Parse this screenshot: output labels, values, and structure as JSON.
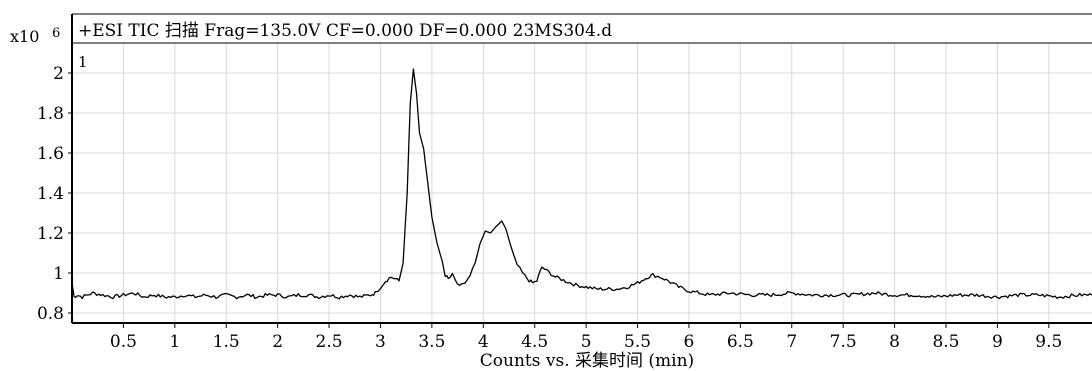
{
  "chart_data": {
    "type": "line",
    "title": "+ESI TIC 扫描 Frag=135.0V CF=0.000 DF=0.000 23MS304.d",
    "xlabel": "Counts vs. 采集时间 (min)",
    "ylabel": "",
    "y_multiplier_label": "x10",
    "y_multiplier_exp": "6",
    "panel_label": "1",
    "xlim": [
      0.0,
      9.92
    ],
    "ylim": [
      0.75,
      2.15
    ],
    "x_ticks": [
      0.5,
      1,
      1.5,
      2,
      2.5,
      3,
      3.5,
      4,
      4.5,
      5,
      5.5,
      6,
      6.5,
      7,
      7.5,
      8,
      8.5,
      9,
      9.5
    ],
    "x_tick_labels": [
      "0.5",
      "1",
      "1.5",
      "2",
      "2.5",
      "3",
      "3.5",
      "4",
      "4.5",
      "5",
      "5.5",
      "6",
      "6.5",
      "7",
      "7.5",
      "8",
      "8.5",
      "9",
      "9.5"
    ],
    "y_ticks": [
      0.8,
      1.0,
      1.2,
      1.4,
      1.6,
      1.8,
      2.0
    ],
    "y_tick_labels": [
      "0.8",
      "1",
      "1.2",
      "1.4",
      "1.6",
      "1.8",
      "2"
    ],
    "grid": true,
    "line_color": "#000000",
    "grid_color": "#d9d9d9",
    "series": [
      {
        "points": [
          [
            0.0,
            0.95
          ],
          [
            0.02,
            0.88
          ],
          [
            0.05,
            0.89
          ],
          [
            0.1,
            0.88
          ],
          [
            0.2,
            0.9
          ],
          [
            0.3,
            0.89
          ],
          [
            0.4,
            0.88
          ],
          [
            0.5,
            0.89
          ],
          [
            0.6,
            0.9
          ],
          [
            0.7,
            0.88
          ],
          [
            0.8,
            0.89
          ],
          [
            0.9,
            0.88
          ],
          [
            1.0,
            0.88
          ],
          [
            1.1,
            0.89
          ],
          [
            1.2,
            0.88
          ],
          [
            1.3,
            0.89
          ],
          [
            1.4,
            0.88
          ],
          [
            1.5,
            0.89
          ],
          [
            1.6,
            0.88
          ],
          [
            1.7,
            0.89
          ],
          [
            1.8,
            0.88
          ],
          [
            1.9,
            0.89
          ],
          [
            2.0,
            0.89
          ],
          [
            2.1,
            0.88
          ],
          [
            2.2,
            0.89
          ],
          [
            2.3,
            0.89
          ],
          [
            2.4,
            0.88
          ],
          [
            2.5,
            0.89
          ],
          [
            2.6,
            0.88
          ],
          [
            2.7,
            0.89
          ],
          [
            2.8,
            0.88
          ],
          [
            2.9,
            0.89
          ],
          [
            2.95,
            0.9
          ],
          [
            3.0,
            0.93
          ],
          [
            3.05,
            0.96
          ],
          [
            3.1,
            0.98
          ],
          [
            3.15,
            0.97
          ],
          [
            3.18,
            0.96
          ],
          [
            3.22,
            1.05
          ],
          [
            3.26,
            1.4
          ],
          [
            3.29,
            1.85
          ],
          [
            3.32,
            2.02
          ],
          [
            3.35,
            1.9
          ],
          [
            3.38,
            1.7
          ],
          [
            3.42,
            1.62
          ],
          [
            3.46,
            1.45
          ],
          [
            3.5,
            1.28
          ],
          [
            3.55,
            1.15
          ],
          [
            3.6,
            1.06
          ],
          [
            3.63,
            0.99
          ],
          [
            3.66,
            0.97
          ],
          [
            3.7,
            0.99
          ],
          [
            3.73,
            0.96
          ],
          [
            3.77,
            0.93
          ],
          [
            3.82,
            0.95
          ],
          [
            3.87,
            0.98
          ],
          [
            3.92,
            1.05
          ],
          [
            3.97,
            1.15
          ],
          [
            4.02,
            1.21
          ],
          [
            4.07,
            1.2
          ],
          [
            4.12,
            1.23
          ],
          [
            4.18,
            1.26
          ],
          [
            4.22,
            1.22
          ],
          [
            4.27,
            1.13
          ],
          [
            4.33,
            1.04
          ],
          [
            4.38,
            1.0
          ],
          [
            4.43,
            0.97
          ],
          [
            4.48,
            0.95
          ],
          [
            4.52,
            0.96
          ],
          [
            4.57,
            1.03
          ],
          [
            4.62,
            1.01
          ],
          [
            4.7,
            0.98
          ],
          [
            4.8,
            0.96
          ],
          [
            4.9,
            0.94
          ],
          [
            5.0,
            0.93
          ],
          [
            5.1,
            0.92
          ],
          [
            5.2,
            0.92
          ],
          [
            5.3,
            0.92
          ],
          [
            5.4,
            0.93
          ],
          [
            5.5,
            0.95
          ],
          [
            5.6,
            0.98
          ],
          [
            5.65,
            0.99
          ],
          [
            5.72,
            0.98
          ],
          [
            5.8,
            0.96
          ],
          [
            5.9,
            0.93
          ],
          [
            6.0,
            0.91
          ],
          [
            6.1,
            0.9
          ],
          [
            6.2,
            0.89
          ],
          [
            6.4,
            0.9
          ],
          [
            6.6,
            0.89
          ],
          [
            6.8,
            0.89
          ],
          [
            7.0,
            0.9
          ],
          [
            7.2,
            0.89
          ],
          [
            7.4,
            0.89
          ],
          [
            7.6,
            0.89
          ],
          [
            7.8,
            0.9
          ],
          [
            8.0,
            0.89
          ],
          [
            8.2,
            0.89
          ],
          [
            8.4,
            0.88
          ],
          [
            8.6,
            0.89
          ],
          [
            8.8,
            0.89
          ],
          [
            9.0,
            0.88
          ],
          [
            9.2,
            0.89
          ],
          [
            9.4,
            0.89
          ],
          [
            9.6,
            0.88
          ],
          [
            9.8,
            0.89
          ],
          [
            9.92,
            0.89
          ]
        ]
      }
    ]
  }
}
